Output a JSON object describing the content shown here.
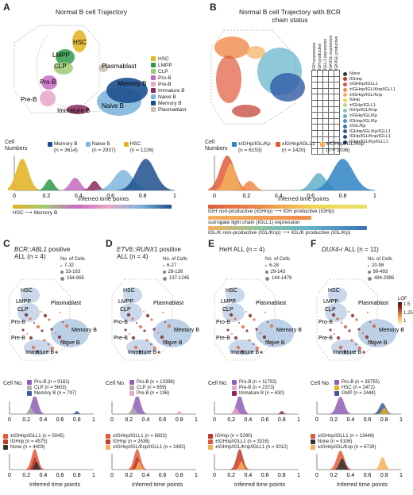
{
  "panels": {
    "A": {
      "letter": "A",
      "title": "Normal B cell Trajectory",
      "map_labels": [
        "HSC",
        "LMPP",
        "CLP",
        "Plasmablast",
        "Pro-B",
        "Memory B",
        "Pre-B",
        "Immature B",
        "Naive B"
      ],
      "legend": [
        {
          "label": "HSC",
          "color": "#e3b21e"
        },
        {
          "label": "LMPP",
          "color": "#2f9a4a"
        },
        {
          "label": "CLP",
          "color": "#9ecb73"
        },
        {
          "label": "Pro-B",
          "color": "#c76ac4"
        },
        {
          "label": "Pre-B",
          "color": "#e8a6c6"
        },
        {
          "label": "Immature B",
          "color": "#8a2a5c"
        },
        {
          "label": "Naive B",
          "color": "#7fb6dc"
        },
        {
          "label": "Memory B",
          "color": "#1d4f8e"
        },
        {
          "label": "Plasmablast",
          "color": "#c9c1b0"
        }
      ],
      "cell_numbers_label": "Cell Numbers",
      "density_legend": [
        {
          "label": "Memory B",
          "n": "(n = 3614)",
          "color": "#1d4f8e"
        },
        {
          "label": "Naive B",
          "n": "(n = 2937)",
          "color": "#7fb6dc"
        },
        {
          "label": "HSC",
          "n": "(n = 1226)",
          "color": "#e3b21e"
        }
      ],
      "xticks": [
        "0",
        "0.2",
        "0.4",
        "0.6",
        "0.8",
        "1"
      ],
      "xlabel": "Inferred time points",
      "bar_left": "HSC",
      "bar_right": "Memory B"
    },
    "B": {
      "letter": "B",
      "title": "Normal B cell Trajectory with BCR chain status",
      "grid_headers": [
        "IGH expression",
        "IGH productive",
        "IGLL1 expression",
        "IGK/IGL expression",
        "IGK/IGL productive"
      ],
      "status_legend": [
        {
          "label": "None",
          "color": "#333333"
        },
        {
          "label": "IGHnp",
          "color": "#c0392b"
        },
        {
          "label": "±IGHnp/IGLL1",
          "color": "#e05a3a"
        },
        {
          "label": "±IGHnp/IGL/Knp/IGLL1",
          "color": "#f08a4b"
        },
        {
          "label": "±IGHnp/IGL/Knp",
          "color": "#f3b15c"
        },
        {
          "label": "IGHp",
          "color": "#f2d64b"
        },
        {
          "label": "±IGHp/IGLL1",
          "color": "#b9d98a"
        },
        {
          "label": "IGHp/IGL/Knp",
          "color": "#8cc6a4"
        },
        {
          "label": "±IGHp/IGL/Kp",
          "color": "#5fb0c8"
        },
        {
          "label": "IGHnp/IGL/Kp",
          "color": "#4a8fc9"
        },
        {
          "label": "±IGL/Kp",
          "color": "#3f6fb8"
        },
        {
          "label": "IGHnp/IGL/Kp/IGLL1",
          "color": "#2f5aa6"
        },
        {
          "label": "IGHp/IGL/Knp/IGLL1",
          "color": "#2a4a8f"
        },
        {
          "label": "IGHp/IGL/Kp/IGLL1",
          "color": "#1f3a75"
        }
      ],
      "density_legend": [
        {
          "label": "±IGHp/IGL/Kp",
          "n": "(n = 6153)",
          "color": "#2f84c6"
        },
        {
          "label": "±IGHnp/IGLL1",
          "n": "(n = 1420)",
          "color": "#e05a3a"
        },
        {
          "label": "±IGHnp/IGL/Knp",
          "n": "(n = 1036)",
          "color": "#f3b15c"
        }
      ],
      "xticks": [
        "0",
        "0.2",
        "0.4",
        "0.6",
        "0.8",
        "1"
      ],
      "xlabel": "Inferred time points",
      "bar1": "IGH non-productive (IGHnp) ⟶ IGH productive (IGHp)",
      "bar2": "surrogate light chain (IGLL1) expression",
      "bar3": "IGL/K non-productive (IGL/Knp) ⟶ IGL/K productive (IGL/Kp)"
    },
    "subpanels": [
      {
        "letter": "C",
        "title_em": "BCR::ABL1",
        "title_rest": " positive",
        "title2": "ALL (n = 4)",
        "size_legend_title": "No. of Cells",
        "size_legend": [
          "7-32",
          "33-163",
          "164-865"
        ],
        "cell_no": "Cell No.",
        "legend1": [
          {
            "label": "Pro-B (n = 9181)",
            "color": "#8e5fb5"
          },
          {
            "label": "CLP (n = 5603)",
            "color": "#b0b0b0"
          },
          {
            "label": "Memory B (n = 797)",
            "color": "#3a5a98"
          }
        ],
        "legend2": [
          {
            "label": "±IGHnp/IGLL1 (n = 5045)",
            "color": "#e05a3a"
          },
          {
            "label": "IGHnp (n = 4575)",
            "color": "#c0392b"
          },
          {
            "label": "None (n = 4403)",
            "color": "#333333"
          }
        ]
      },
      {
        "letter": "D",
        "title_em": "ETV6::RUNX1",
        "title_rest": " positive",
        "title2": "ALL (n = 4)",
        "size_legend_title": "No. of Cells",
        "size_legend": [
          "6-27",
          "28-136",
          "137-1245"
        ],
        "cell_no": "Cell No.",
        "legend1": [
          {
            "label": "Pro-B (n = 13398)",
            "color": "#8e5fb5"
          },
          {
            "label": "CLP (n = 659)",
            "color": "#b0b0b0"
          },
          {
            "label": "Pre-B (n = 196)",
            "color": "#e8a6c6"
          }
        ],
        "legend2": [
          {
            "label": "±IGHnp/IGLL1 (n = 6833)",
            "color": "#e05a3a"
          },
          {
            "label": "IGHnp (n = 2636)",
            "color": "#c0392b"
          },
          {
            "label": "±IGHnp/IGL/Knp/IGLL1 (n = 2482)",
            "color": "#f3b15c"
          }
        ]
      },
      {
        "letter": "E",
        "title_em": "",
        "title_rest": "HeH ALL (n = 4)",
        "title2": "",
        "size_legend_title": "No. of Cells",
        "size_legend": [
          "6-28",
          "29-143",
          "144-1479"
        ],
        "cell_no": "Cell No.",
        "legend1": [
          {
            "label": "Pro-B (n = 11792)",
            "color": "#8e5fb5"
          },
          {
            "label": "Pre-B (n = 2373)",
            "color": "#e8a6c6"
          },
          {
            "label": "Immature B (n = 630)",
            "color": "#8a2a5c"
          }
        ],
        "legend2": [
          {
            "label": "IGHnp (n = 5290)",
            "color": "#c0392b"
          },
          {
            "label": "±IGHnp/IGLL1 (n = 3316)",
            "color": "#e05a3a"
          },
          {
            "label": "±IGHnp/IGL/Knp/IGLL1 (n = 3012)",
            "color": "#f3b15c"
          }
        ]
      },
      {
        "letter": "F",
        "title_em": "DUX4-r",
        "title_rest": " ALL (n = 11)",
        "title2": "",
        "size_legend_title": "No. of Cells",
        "size_legend": [
          "20-98",
          "99-493",
          "494-2995"
        ],
        "cell_no": "Cell No.",
        "lof_label": "LOF",
        "lof_ticks": [
          "1.5",
          "1.25",
          "1"
        ],
        "legend1": [
          {
            "label": "Pro-B (n = 38755)",
            "color": "#8e5fb5"
          },
          {
            "label": "HSC (n = 2472)",
            "color": "#e3b21e"
          },
          {
            "label": "GMP (n = 2444)",
            "color": "#3a5a98"
          }
        ],
        "legend2": [
          {
            "label": "±IGHnp/IGLL1 (n = 13446)",
            "color": "#e05a3a"
          },
          {
            "label": "None (n = 9106)",
            "color": "#333333"
          },
          {
            "label": "±IGHnp/IGL/Knp (n = 6728)",
            "color": "#f3b15c"
          }
        ]
      }
    ],
    "sub_map_labels": [
      "HSC",
      "LMPP",
      "CLP",
      "Plasmablast",
      "Pro-B",
      "Memory B",
      "Pre-B",
      "Naive B",
      "Immature B"
    ],
    "sub_xticks": [
      "0",
      "0.2",
      "0.4",
      "0.6",
      "0.8",
      "1"
    ],
    "sub_xlabel": "Inferred time points"
  }
}
